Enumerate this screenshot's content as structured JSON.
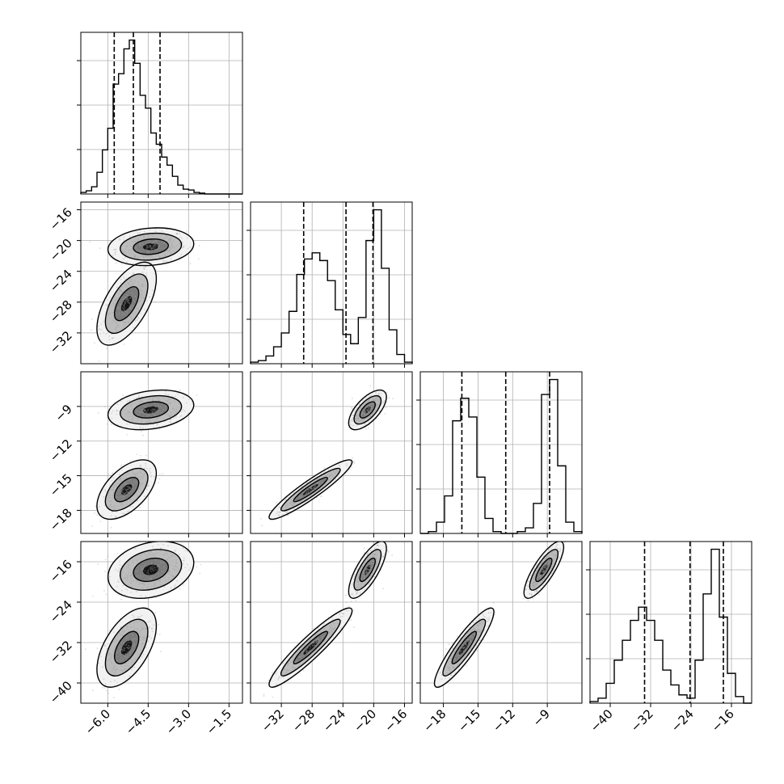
{
  "chart_data": {
    "type": "corner",
    "parameters": [
      "",
      "",
      "",
      ""
    ],
    "x_ranges": [
      [
        -7.0,
        -1.0
      ],
      [
        -36.0,
        -15.0
      ],
      [
        -20.0,
        -6.0
      ],
      [
        -44.0,
        -12.0
      ]
    ],
    "x_ticks": [
      {
        "values": [
          -6.0,
          -4.5,
          -3.0,
          -1.5
        ],
        "labels": [
          "−6.0",
          "−4.5",
          "−3.0",
          "−1.5"
        ]
      },
      {
        "values": [
          -32,
          -28,
          -24,
          -20,
          -16
        ],
        "labels": [
          "−32",
          "−28",
          "−24",
          "−20",
          "−16"
        ]
      },
      {
        "values": [
          -18,
          -15,
          -12,
          -9
        ],
        "labels": [
          "−18",
          "−15",
          "−12",
          "−9"
        ]
      },
      {
        "values": [
          -40,
          -32,
          -24,
          -16
        ],
        "labels": [
          "−40",
          "−32",
          "−24",
          "−16"
        ]
      }
    ],
    "y_ticks": [
      null,
      {
        "values": [
          -16,
          -20,
          -24,
          -28,
          -32
        ],
        "labels": [
          "−16",
          "−20",
          "−24",
          "−28",
          "−32"
        ]
      },
      {
        "values": [
          -9,
          -12,
          -15,
          -18
        ],
        "labels": [
          "−9",
          "−12",
          "−15",
          "−18"
        ]
      },
      {
        "values": [
          -16,
          -24,
          -32,
          -40
        ],
        "labels": [
          "−16",
          "−24",
          "−32",
          "−40"
        ]
      }
    ],
    "quantiles": [
      [
        -5.76,
        -5.05,
        -4.06
      ],
      [
        -29.1,
        -23.6,
        -20.1
      ],
      [
        -16.4,
        -12.6,
        -8.8
      ],
      [
        -33.2,
        -24.2,
        -17.6
      ]
    ],
    "histograms": [
      {
        "edges": [
          -7.0,
          -6.8,
          -6.6,
          -6.4,
          -6.2,
          -6.0,
          -5.8,
          -5.6,
          -5.4,
          -5.2,
          -5.0,
          -4.8,
          -4.6,
          -4.4,
          -4.2,
          -4.0,
          -3.8,
          -3.6,
          -3.4,
          -3.2,
          -3.0,
          -2.8,
          -2.6,
          -2.4,
          -2.2,
          -2.0,
          -1.8,
          -1.6,
          -1.4,
          -1.2,
          -1.0
        ],
        "counts": [
          2,
          4,
          9,
          27,
          55,
          82,
          137,
          150,
          181,
          192,
          163,
          123,
          107,
          76,
          62,
          46,
          36,
          22,
          11,
          6,
          5,
          2,
          1,
          0,
          0,
          0,
          0,
          0,
          0,
          0
        ]
      },
      {
        "edges": [
          -36,
          -35,
          -34,
          -33,
          -32,
          -31,
          -30,
          -29,
          -28,
          -27,
          -26,
          -25,
          -24,
          -23,
          -22,
          -21,
          -20,
          -19,
          -18,
          -17,
          -16,
          -15
        ],
        "counts": [
          1,
          2,
          5,
          11,
          20,
          34,
          58,
          68,
          72,
          67,
          54,
          35,
          19,
          13,
          30,
          80,
          100,
          62,
          22,
          6,
          1
        ]
      },
      {
        "edges": [
          -20.0,
          -19.3,
          -18.6,
          -17.9,
          -17.2,
          -16.5,
          -15.8,
          -15.1,
          -14.4,
          -13.7,
          -13.0,
          -12.3,
          -11.6,
          -10.9,
          -10.2,
          -9.5,
          -8.8,
          -8.1,
          -7.4,
          -6.7,
          -6.0
        ],
        "counts": [
          0,
          1,
          6,
          20,
          60,
          72,
          62,
          30,
          8,
          1,
          0,
          0,
          1,
          3,
          16,
          74,
          82,
          36,
          6,
          1
        ]
      },
      {
        "edges": [
          -44.0,
          -42.4,
          -40.8,
          -39.2,
          -37.6,
          -36.0,
          -34.4,
          -32.8,
          -31.2,
          -29.6,
          -28.0,
          -26.4,
          -24.8,
          -23.2,
          -21.6,
          -20.0,
          -18.4,
          -16.8,
          -15.2,
          -13.6,
          -12.0
        ],
        "counts": [
          1,
          3,
          12,
          26,
          38,
          50,
          58,
          50,
          38,
          20,
          11,
          5,
          3,
          26,
          66,
          93,
          52,
          18,
          4,
          0
        ]
      }
    ],
    "joint_modes": [
      {
        "pair": [
          0,
          1
        ],
        "modes": [
          {
            "mean": [
              -4.4,
              -20.8
            ],
            "sd": [
              0.65,
              1.0
            ],
            "rho": 0.15,
            "weight": 0.52
          },
          {
            "mean": [
              -5.3,
              -28.2
            ],
            "sd": [
              0.45,
              2.2
            ],
            "rho": 0.6,
            "weight": 0.48
          }
        ]
      },
      {
        "pair": [
          0,
          2
        ],
        "modes": [
          {
            "mean": [
              -4.4,
              -9.3
            ],
            "sd": [
              0.65,
              0.7
            ],
            "rho": 0.25,
            "weight": 0.52
          },
          {
            "mean": [
              -5.3,
              -16.2
            ],
            "sd": [
              0.45,
              1.05
            ],
            "rho": 0.55,
            "weight": 0.48
          }
        ]
      },
      {
        "pair": [
          0,
          3
        ],
        "modes": [
          {
            "mean": [
              -4.4,
              -17.6
            ],
            "sd": [
              0.65,
              2.3
            ],
            "rho": 0.25,
            "weight": 0.52
          },
          {
            "mean": [
              -5.3,
              -33.0
            ],
            "sd": [
              0.45,
              3.2
            ],
            "rho": 0.55,
            "weight": 0.48
          }
        ]
      },
      {
        "pair": [
          1,
          2
        ],
        "modes": [
          {
            "mean": [
              -20.8,
              -9.3
            ],
            "sd": [
              1.0,
              0.7
            ],
            "rho": 0.65,
            "weight": 0.52
          },
          {
            "mean": [
              -28.2,
              -16.2
            ],
            "sd": [
              2.2,
              1.05
            ],
            "rho": 0.93,
            "weight": 0.48
          }
        ]
      },
      {
        "pair": [
          1,
          3
        ],
        "modes": [
          {
            "mean": [
              -20.8,
              -17.6
            ],
            "sd": [
              1.0,
              2.3
            ],
            "rho": 0.75,
            "weight": 0.52
          },
          {
            "mean": [
              -28.2,
              -33.0
            ],
            "sd": [
              2.2,
              3.2
            ],
            "rho": 0.93,
            "weight": 0.48
          }
        ]
      },
      {
        "pair": [
          2,
          3
        ],
        "modes": [
          {
            "mean": [
              -9.3,
              -17.6
            ],
            "sd": [
              0.7,
              2.3
            ],
            "rho": 0.8,
            "weight": 0.52
          },
          {
            "mean": [
              -16.2,
              -33.0
            ],
            "sd": [
              1.05,
              3.2
            ],
            "rho": 0.9,
            "weight": 0.48
          }
        ]
      }
    ],
    "grid": true,
    "colors": {
      "line": "#000000",
      "grid": "#b0b0b0",
      "points": "#9a9a9a",
      "fill_light": "#f2f2f2",
      "fill_mid": "#bdbdbd",
      "fill_dark": "#7a7a7a",
      "fill_peak": "#141414"
    }
  }
}
